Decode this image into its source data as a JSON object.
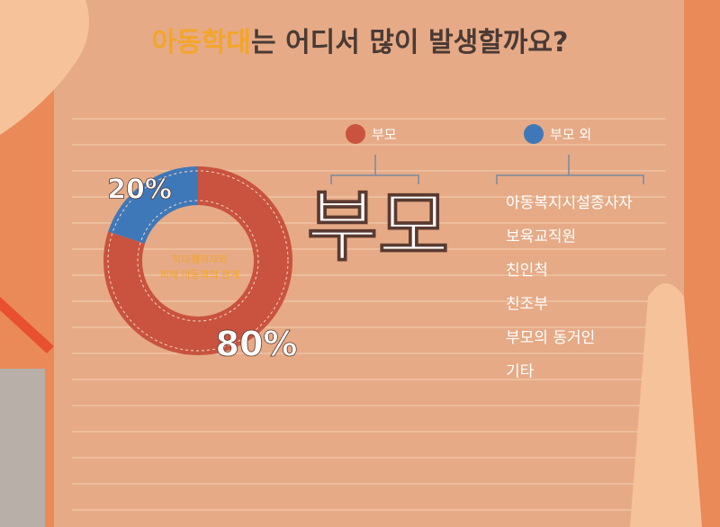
{
  "chart_data": {
    "type": "donut",
    "title": {
      "highlight": "아동학대",
      "rest": "는 어디서 많이 발생할까요?"
    },
    "categories": [
      "부모",
      "부모 외"
    ],
    "values": [
      80,
      20
    ],
    "value_labels": [
      "80%",
      "20%"
    ],
    "colors": [
      "#c9533e",
      "#3f78b8"
    ],
    "center_label": [
      "학대행위자와",
      "피해 아동과의 관계"
    ],
    "others_list": [
      "아동복지시설종사자",
      "보육교직원",
      "친인척",
      "친조부",
      "부모의 동거인",
      "기타"
    ]
  }
}
